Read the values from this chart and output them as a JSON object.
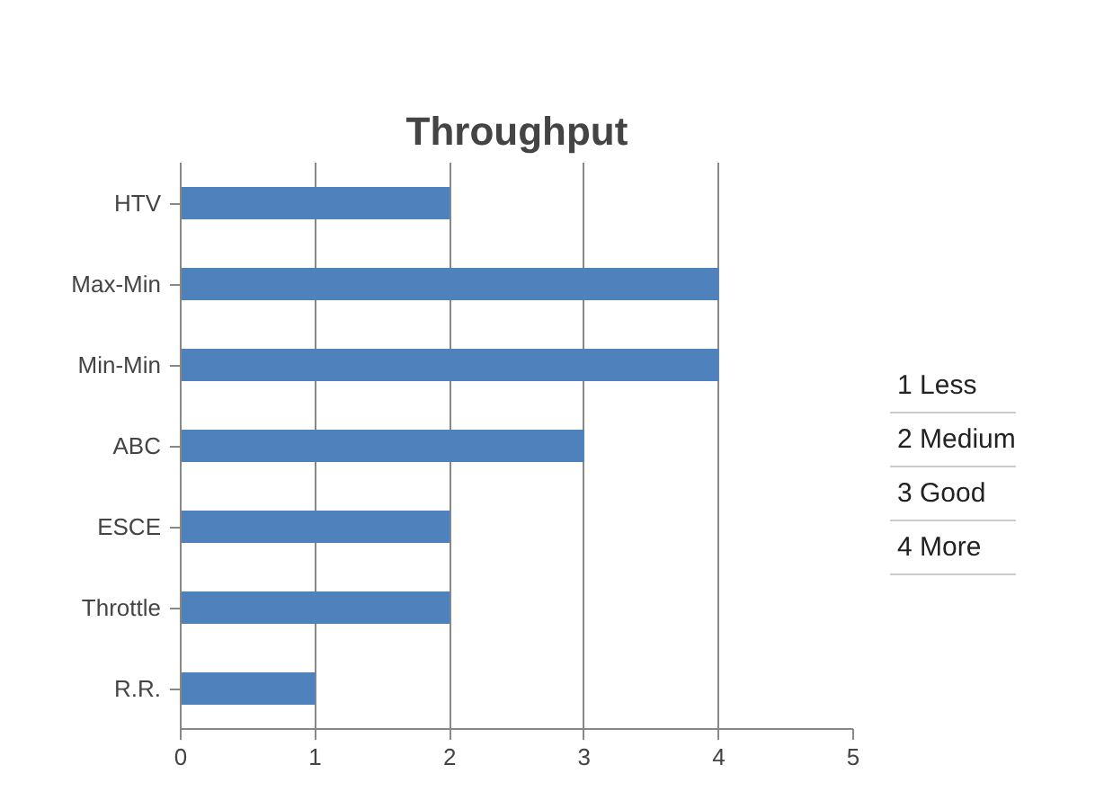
{
  "chart_data": {
    "type": "bar",
    "orientation": "horizontal",
    "title": "Throughput",
    "categories": [
      "HTV",
      "Max-Min",
      "Min-Min",
      "ABC",
      "ESCE",
      "Throttle",
      "R.R."
    ],
    "values": [
      2,
      4,
      4,
      3,
      2,
      2,
      1
    ],
    "color": "#4f81bd",
    "xlim": [
      0,
      5
    ],
    "xticks": [
      0,
      1,
      2,
      3,
      4,
      5
    ],
    "grid": "x",
    "annotations": [
      "1 Less",
      "2 Medium",
      "3 Good",
      "4 More"
    ]
  }
}
